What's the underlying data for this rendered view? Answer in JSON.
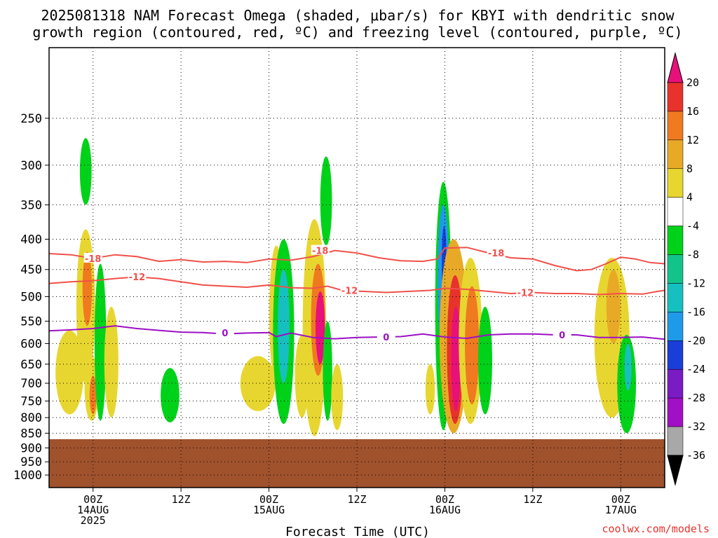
{
  "title_line1": "2025081318 NAM Forecast Omega (shaded, μbar/s) for KBYI with dendritic snow",
  "title_line2": "growth region (contoured, red, ºC) and freezing level (contoured, purple, ºC)",
  "credit": "coolwx.com/models",
  "chart_data": {
    "type": "heatmap",
    "title": "2025081318 NAM Forecast Omega (shaded, μbar/s) for KBYI with dendritic snow growth region (contoured, red, ºC) and freezing level (contoured, purple, ºC)",
    "xlabel": "Forecast Time (UTC)",
    "ylabel": "",
    "x_range_hours": [
      0,
      84
    ],
    "x_ticks": [
      {
        "hour": 6,
        "line1": "00Z",
        "line2": "14AUG",
        "line3": "2025"
      },
      {
        "hour": 18,
        "line1": "12Z",
        "line2": "",
        "line3": ""
      },
      {
        "hour": 30,
        "line1": "00Z",
        "line2": "15AUG",
        "line3": ""
      },
      {
        "hour": 42,
        "line1": "12Z",
        "line2": "",
        "line3": ""
      },
      {
        "hour": 54,
        "line1": "00Z",
        "line2": "16AUG",
        "line3": ""
      },
      {
        "hour": 66,
        "line1": "12Z",
        "line2": "",
        "line3": ""
      },
      {
        "hour": 78,
        "line1": "00Z",
        "line2": "17AUG",
        "line3": ""
      }
    ],
    "y_axis": "pressure (hPa)",
    "y_ticks": [
      250,
      300,
      350,
      400,
      450,
      500,
      550,
      600,
      650,
      700,
      750,
      800,
      850,
      900,
      950,
      1000
    ],
    "y_range": [
      190,
      1050
    ],
    "grid": true,
    "surface_pressure_hPa": 870,
    "colorbar": {
      "labels": [
        "20",
        "16",
        "12",
        "8",
        "4",
        "-4",
        "-8",
        "-12",
        "-16",
        "-20",
        "-24",
        "-28",
        "-32",
        "-36"
      ],
      "colors": [
        "#e8322c",
        "#f07a20",
        "#e8aa26",
        "#e8d630",
        "#ffffff",
        "#00d21a",
        "#12c48a",
        "#17c0c0",
        "#1f9ae8",
        "#1a3ed8",
        "#7a1cc4",
        "#a010c4",
        "#a8a8a8"
      ],
      "top_arrow_color": "#e8107a",
      "bottom_arrow_color": "#000000"
    },
    "contours": [
      {
        "label": "-18",
        "color": "#f0504a",
        "points": [
          [
            0,
            423
          ],
          [
            3,
            425
          ],
          [
            6,
            431
          ],
          [
            9,
            425
          ],
          [
            12,
            428
          ],
          [
            15,
            436
          ],
          [
            18,
            433
          ],
          [
            21,
            437
          ],
          [
            24,
            436
          ],
          [
            27,
            438
          ],
          [
            30,
            432
          ],
          [
            33,
            434
          ],
          [
            36,
            428
          ],
          [
            39,
            418
          ],
          [
            42,
            422
          ],
          [
            45,
            430
          ],
          [
            48,
            435
          ],
          [
            51,
            436
          ],
          [
            53,
            432
          ],
          [
            54,
            414
          ],
          [
            57,
            413
          ],
          [
            60,
            422
          ],
          [
            63,
            430
          ],
          [
            66,
            432
          ],
          [
            69,
            443
          ],
          [
            72,
            452
          ],
          [
            74,
            450
          ],
          [
            76,
            440
          ],
          [
            78,
            429
          ],
          [
            80,
            432
          ],
          [
            82,
            438
          ],
          [
            84,
            440
          ]
        ],
        "label_positions": [
          [
            6,
            431
          ],
          [
            37,
            418
          ],
          [
            61,
            422
          ]
        ]
      },
      {
        "label": "-12",
        "color": "#f0504a",
        "points": [
          [
            0,
            475
          ],
          [
            3,
            472
          ],
          [
            6,
            470
          ],
          [
            9,
            466
          ],
          [
            12,
            463
          ],
          [
            15,
            466
          ],
          [
            18,
            472
          ],
          [
            21,
            478
          ],
          [
            24,
            480
          ],
          [
            27,
            482
          ],
          [
            30,
            478
          ],
          [
            33,
            483
          ],
          [
            36,
            484
          ],
          [
            38,
            480
          ],
          [
            40,
            488
          ],
          [
            43,
            490
          ],
          [
            46,
            492
          ],
          [
            49,
            490
          ],
          [
            52,
            488
          ],
          [
            54,
            484
          ],
          [
            57,
            486
          ],
          [
            60,
            490
          ],
          [
            63,
            494
          ],
          [
            66,
            492
          ],
          [
            69,
            494
          ],
          [
            72,
            494
          ],
          [
            75,
            496
          ],
          [
            78,
            494
          ],
          [
            81,
            495
          ],
          [
            83,
            490
          ],
          [
            84,
            488
          ]
        ],
        "label_positions": [
          [
            12,
            463
          ],
          [
            41,
            488
          ],
          [
            65,
            492
          ]
        ]
      },
      {
        "label": "0",
        "color": "#9b10c4",
        "points": [
          [
            0,
            571
          ],
          [
            3,
            569
          ],
          [
            6,
            566
          ],
          [
            9,
            560
          ],
          [
            12,
            566
          ],
          [
            15,
            570
          ],
          [
            18,
            574
          ],
          [
            21,
            575
          ],
          [
            24,
            578
          ],
          [
            27,
            576
          ],
          [
            30,
            575
          ],
          [
            31,
            584
          ],
          [
            33,
            576
          ],
          [
            36,
            586
          ],
          [
            39,
            589
          ],
          [
            42,
            586
          ],
          [
            45,
            585
          ],
          [
            48,
            584
          ],
          [
            51,
            578
          ],
          [
            54,
            585
          ],
          [
            57,
            588
          ],
          [
            60,
            580
          ],
          [
            63,
            578
          ],
          [
            66,
            578
          ],
          [
            69,
            580
          ],
          [
            72,
            580
          ],
          [
            75,
            586
          ],
          [
            78,
            586
          ],
          [
            81,
            585
          ],
          [
            84,
            590
          ]
        ],
        "label_positions": [
          [
            24,
            575
          ],
          [
            46,
            585
          ],
          [
            70,
            580
          ]
        ]
      }
    ],
    "omega_blobs": [
      {
        "hour": 5.0,
        "p_top": 270,
        "p_bot": 350,
        "w": 0.5,
        "value": -8
      },
      {
        "hour": 5.0,
        "p_top": 385,
        "p_bot": 700,
        "w": 0.8,
        "value": 4
      },
      {
        "hour": 5.2,
        "p_top": 420,
        "p_bot": 560,
        "w": 0.4,
        "value": 12
      },
      {
        "hour": 2.8,
        "p_top": 570,
        "p_bot": 790,
        "w": 1.2,
        "value": 4
      },
      {
        "hour": 5.8,
        "p_top": 630,
        "p_bot": 810,
        "w": 0.6,
        "value": 4
      },
      {
        "hour": 6.0,
        "p_top": 680,
        "p_bot": 790,
        "w": 0.3,
        "value": 12
      },
      {
        "hour": 7.0,
        "p_top": 440,
        "p_bot": 810,
        "w": 0.5,
        "value": -8
      },
      {
        "hour": 8.5,
        "p_top": 520,
        "p_bot": 800,
        "w": 0.6,
        "value": 4
      },
      {
        "hour": 16.5,
        "p_top": 660,
        "p_bot": 815,
        "w": 0.8,
        "value": -8
      },
      {
        "hour": 28.5,
        "p_top": 630,
        "p_bot": 780,
        "w": 1.5,
        "value": 4
      },
      {
        "hour": 31.0,
        "p_top": 410,
        "p_bot": 700,
        "w": 0.6,
        "value": 4
      },
      {
        "hour": 32.0,
        "p_top": 400,
        "p_bot": 820,
        "w": 0.9,
        "value": -8
      },
      {
        "hour": 32.0,
        "p_top": 450,
        "p_bot": 700,
        "w": 0.5,
        "value": -12
      },
      {
        "hour": 34.5,
        "p_top": 580,
        "p_bot": 800,
        "w": 0.6,
        "value": 4
      },
      {
        "hour": 36.2,
        "p_top": 370,
        "p_bot": 860,
        "w": 1.0,
        "value": 4
      },
      {
        "hour": 36.7,
        "p_top": 440,
        "p_bot": 680,
        "w": 0.6,
        "value": 12
      },
      {
        "hour": 37.0,
        "p_top": 490,
        "p_bot": 650,
        "w": 0.4,
        "value": 20
      },
      {
        "hour": 38.0,
        "p_top": 550,
        "p_bot": 810,
        "w": 0.4,
        "value": -8
      },
      {
        "hour": 39.3,
        "p_top": 650,
        "p_bot": 840,
        "w": 0.5,
        "value": 4
      },
      {
        "hour": 37.8,
        "p_top": 290,
        "p_bot": 410,
        "w": 0.5,
        "value": -8
      },
      {
        "hour": 52.0,
        "p_top": 650,
        "p_bot": 790,
        "w": 0.4,
        "value": 4
      },
      {
        "hour": 53.8,
        "p_top": 320,
        "p_bot": 840,
        "w": 0.7,
        "value": -8
      },
      {
        "hour": 53.8,
        "p_top": 350,
        "p_bot": 620,
        "w": 0.5,
        "value": -16
      },
      {
        "hour": 53.9,
        "p_top": 380,
        "p_bot": 500,
        "w": 0.2,
        "value": -20
      },
      {
        "hour": 55.2,
        "p_top": 400,
        "p_bot": 850,
        "w": 1.2,
        "value": 8
      },
      {
        "hour": 55.4,
        "p_top": 460,
        "p_bot": 820,
        "w": 0.7,
        "value": 16
      },
      {
        "hour": 55.5,
        "p_top": 520,
        "p_bot": 780,
        "w": 0.4,
        "value": 20
      },
      {
        "hour": 57.5,
        "p_top": 430,
        "p_bot": 820,
        "w": 1.0,
        "value": 4
      },
      {
        "hour": 57.7,
        "p_top": 480,
        "p_bot": 760,
        "w": 0.6,
        "value": 12
      },
      {
        "hour": 59.5,
        "p_top": 520,
        "p_bot": 790,
        "w": 0.6,
        "value": -8
      },
      {
        "hour": 76.8,
        "p_top": 430,
        "p_bot": 800,
        "w": 1.5,
        "value": 4
      },
      {
        "hour": 77.0,
        "p_top": 450,
        "p_bot": 600,
        "w": 0.6,
        "value": 8
      },
      {
        "hour": 78.8,
        "p_top": 580,
        "p_bot": 850,
        "w": 0.8,
        "value": -8
      },
      {
        "hour": 79.0,
        "p_top": 600,
        "p_bot": 720,
        "w": 0.3,
        "value": -12
      }
    ]
  }
}
